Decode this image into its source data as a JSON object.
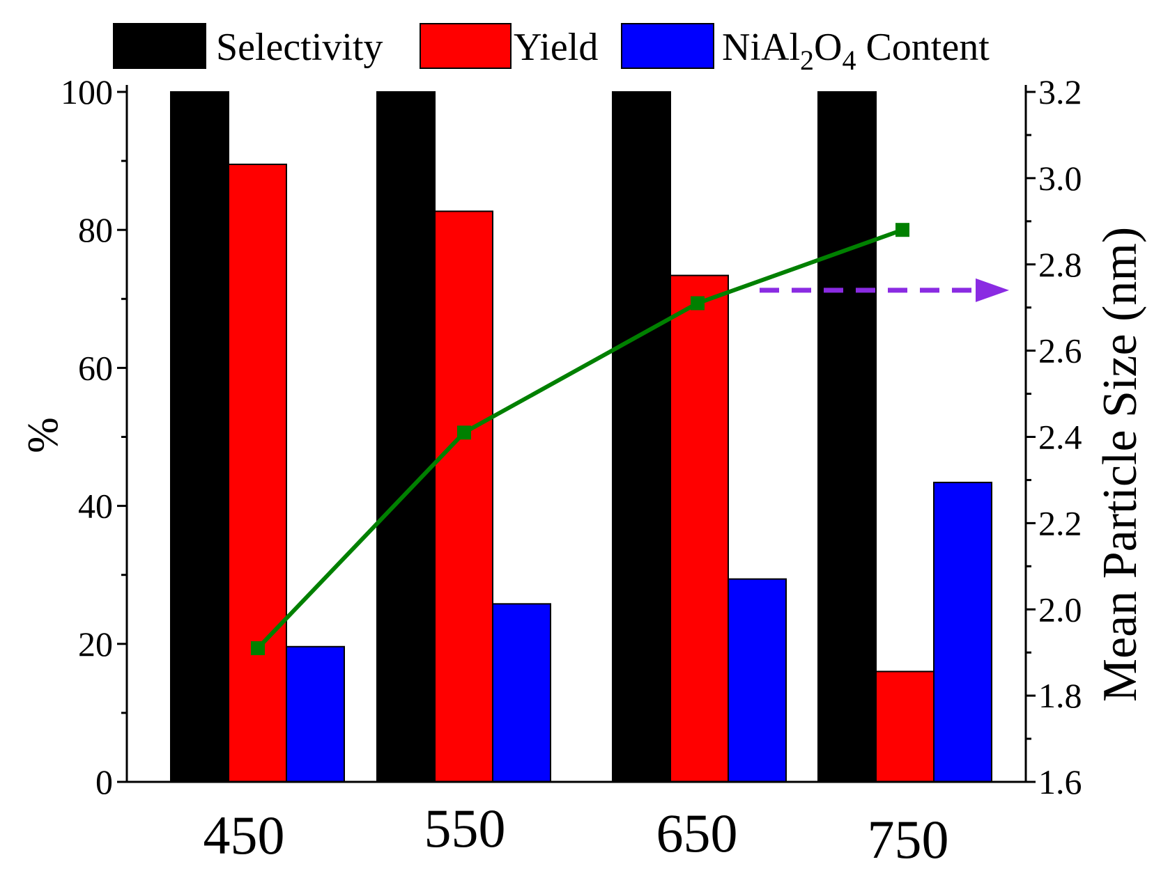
{
  "chart_data": {
    "type": "bar",
    "categories": [
      "450",
      "550",
      "650",
      "750"
    ],
    "series": [
      {
        "name": "Selectivity",
        "color": "#000000",
        "values": [
          100,
          100,
          100,
          100
        ]
      },
      {
        "name": "Yield",
        "color": "#ff0000",
        "values": [
          89.5,
          82.7,
          73.4,
          16.0
        ]
      },
      {
        "name": "NiAl2O4 Content",
        "color": "#0000ff",
        "values": [
          19.6,
          25.8,
          29.4,
          43.4
        ]
      }
    ],
    "line_series": {
      "name": "Mean Particle Size",
      "color": "#008000",
      "axis": "right",
      "values": [
        1.91,
        2.41,
        2.71,
        2.88
      ]
    },
    "legend_labels": {
      "selectivity": "Selectivity",
      "yield": "Yield",
      "nial_prefix": "NiAl",
      "nial_sub1": "2",
      "nial_mid": "O",
      "nial_sub2": "4",
      "nial_suffix": " Content"
    },
    "ylabel": "%",
    "y2label": "Mean Particle Size (nm)",
    "xlabel": "",
    "ylim": [
      0,
      100
    ],
    "y2lim": [
      1.6,
      3.2
    ],
    "y_ticks": [
      "0",
      "20",
      "40",
      "60",
      "80",
      "100"
    ],
    "y2_ticks": [
      "1.6",
      "1.8",
      "2.0",
      "2.2",
      "2.4",
      "2.6",
      "2.8",
      "3.0",
      "3.2"
    ],
    "annotation": {
      "type": "dashed-arrow",
      "direction": "right",
      "color": "#8a2be2",
      "points_to": "right axis",
      "level": 2.74
    },
    "legend_position": "top"
  }
}
